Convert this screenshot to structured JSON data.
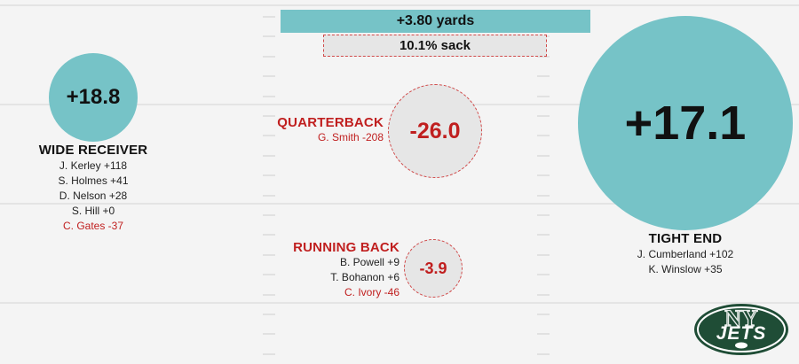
{
  "chart_data": {
    "type": "bubble",
    "summary": {
      "yards": "+3.80 yards",
      "sack": "10.1% sack"
    },
    "positions": [
      {
        "id": "wr",
        "label": "WIDE RECEIVER",
        "value": 18.8,
        "display": "+18.8",
        "players": [
          {
            "name": "J. Kerley",
            "value": 118,
            "text": "J. Kerley +118"
          },
          {
            "name": "S. Holmes",
            "value": 41,
            "text": "S. Holmes +41"
          },
          {
            "name": "D. Nelson",
            "value": 28,
            "text": "D. Nelson +28"
          },
          {
            "name": "S. Hill",
            "value": 0,
            "text": "S. Hill +0"
          },
          {
            "name": "C. Gates",
            "value": -37,
            "text": "C. Gates -37"
          }
        ]
      },
      {
        "id": "qb",
        "label": "QUARTERBACK",
        "value": -26.0,
        "display": "-26.0",
        "players": [
          {
            "name": "G. Smith",
            "value": -208,
            "text": "G. Smith -208"
          }
        ]
      },
      {
        "id": "rb",
        "label": "RUNNING BACK",
        "value": -3.9,
        "display": "-3.9",
        "players": [
          {
            "name": "B. Powell",
            "value": 9,
            "text": "B. Powell +9"
          },
          {
            "name": "T. Bohanon",
            "value": 6,
            "text": "T. Bohanon +6"
          },
          {
            "name": "C. Ivory",
            "value": -46,
            "text": "C. Ivory -46"
          }
        ]
      },
      {
        "id": "te",
        "label": "TIGHT END",
        "value": 17.1,
        "display": "+17.1",
        "players": [
          {
            "name": "J. Cumberland",
            "value": 102,
            "text": "J. Cumberland +102"
          },
          {
            "name": "K. Winslow",
            "value": 35,
            "text": "K. Winslow +35"
          }
        ]
      }
    ]
  },
  "colors": {
    "positive": "#76c3c7",
    "negative_text": "#c01f1f",
    "negative_fill": "#e6e6e6",
    "logo_green": "#1f4d36"
  },
  "logo": {
    "icon": "jets-logo",
    "text": "JETS",
    "monogram": "NY"
  }
}
